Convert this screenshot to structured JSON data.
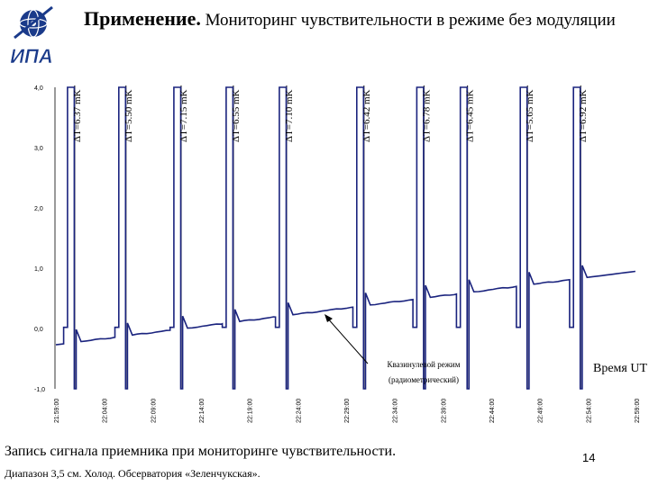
{
  "slide": {
    "title_bold": "Применение.",
    "title_rest": " Мониторинг чувствительности в режиме без модуляции",
    "logo_text": "ИПА",
    "caption": "Запись сигнала приемника при мониторинге чувствительности.",
    "subcaption": "Диапазон 3,5 см. Холод. Обсерватория «Зеленчукская».",
    "page_number": "14"
  },
  "colors": {
    "trace": "#1a237e",
    "vline": "#000000",
    "text": "#000000"
  },
  "chart_data": {
    "type": "line",
    "title": "",
    "xlabel": "Время UT",
    "ylabel": "",
    "y_ticks": [
      "4,0",
      "3,0",
      "2,0",
      "1,0",
      "0,0",
      "-1,0"
    ],
    "ylim": [
      -1.0,
      4.0
    ],
    "x_ticks": [
      "21:59:00",
      "22:04:00",
      "22:09:00",
      "22:14:00",
      "22:19:00",
      "22:24:00",
      "22:29:00",
      "22:34:00",
      "22:39:00",
      "22:44:00",
      "22:49:00",
      "22:54:00",
      "22:59:00"
    ],
    "xlim_minutes": [
      0,
      60
    ],
    "baseline_points": [
      [
        0,
        -0.27
      ],
      [
        60,
        0.95
      ]
    ],
    "calibrations": [
      {
        "label": "ΔT=6.37 mK",
        "t": 1.2
      },
      {
        "label": "ΔT=5.50 mK",
        "t": 6.5
      },
      {
        "label": "ΔT=7.15 mK",
        "t": 12.2
      },
      {
        "label": "ΔT=6.55 mK",
        "t": 17.6
      },
      {
        "label": "ΔT=7.10 mK",
        "t": 23.1
      },
      {
        "label": "ΔT=6.42 mK",
        "t": 31.1
      },
      {
        "label": "ΔT=6.78 mK",
        "t": 37.3
      },
      {
        "label": "ΔT=6.45 mK",
        "t": 41.8
      },
      {
        "label": "ΔT=5.65 mK",
        "t": 48.0
      },
      {
        "label": "ΔT=6.92 mK",
        "t": 53.5
      }
    ],
    "annotation": {
      "line1": "Квазинулевой режим",
      "line2": "(радиометрический)",
      "t": 26.0,
      "y": 0.15
    },
    "grid": false
  }
}
